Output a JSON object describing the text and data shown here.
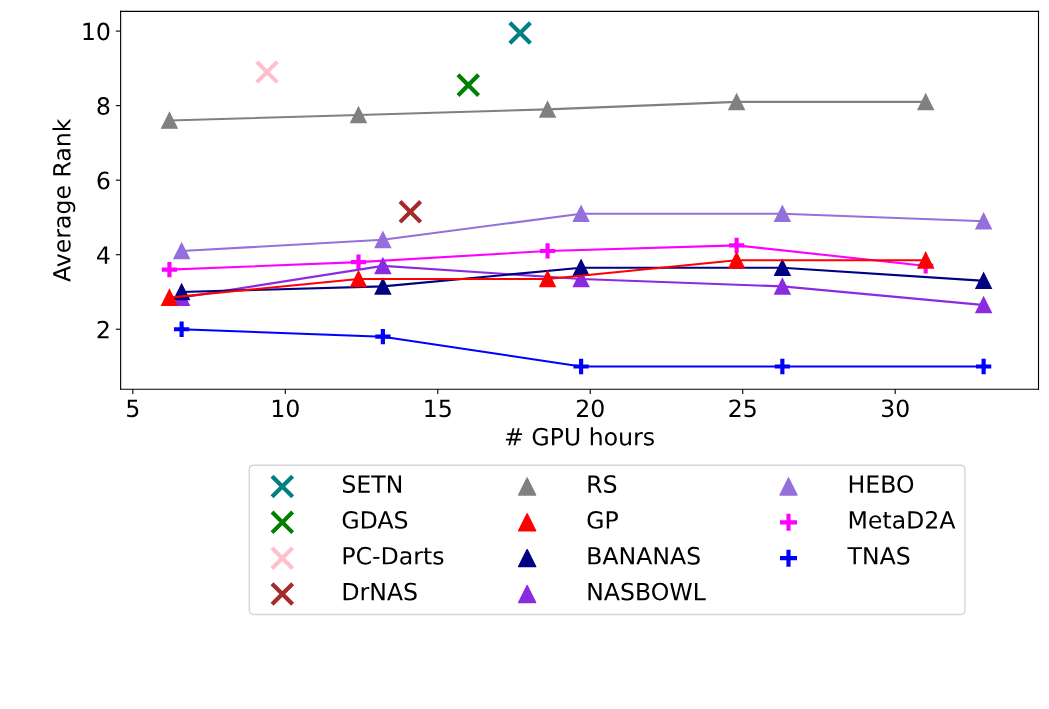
{
  "chart_data": {
    "type": "line",
    "xlabel": "# GPU hours",
    "ylabel": "Average Rank",
    "xlim": [
      4.6,
      34.7
    ],
    "ylim": [
      0.39,
      10.53
    ],
    "xticks": [
      5,
      10,
      15,
      20,
      25,
      30
    ],
    "yticks": [
      2,
      4,
      6,
      8,
      10
    ],
    "grid": false,
    "legend": "bottom",
    "series": [
      {
        "name": "SETN",
        "type": "scatter",
        "marker": "cross",
        "color": "#008080",
        "x": [
          17.7
        ],
        "values": [
          9.95
        ]
      },
      {
        "name": "GDAS",
        "type": "scatter",
        "marker": "cross",
        "color": "#008000",
        "x": [
          16.0
        ],
        "values": [
          8.55
        ]
      },
      {
        "name": "PC-Darts",
        "type": "scatter",
        "marker": "cross",
        "color": "#ffc0cb",
        "x": [
          9.4
        ],
        "values": [
          8.9
        ]
      },
      {
        "name": "DrNAS",
        "type": "scatter",
        "marker": "cross",
        "color": "#a52a2a",
        "x": [
          14.1
        ],
        "values": [
          5.15
        ]
      },
      {
        "name": "RS",
        "marker": "triangle",
        "color": "#808080",
        "x": [
          6.2,
          12.4,
          18.6,
          24.8,
          31.0
        ],
        "values": [
          7.6,
          7.75,
          7.9,
          8.1,
          8.1
        ]
      },
      {
        "name": "GP",
        "marker": "triangle",
        "color": "#ff0000",
        "x": [
          6.2,
          12.4,
          18.6,
          24.8,
          31.0
        ],
        "values": [
          2.85,
          3.35,
          3.35,
          3.85,
          3.85
        ]
      },
      {
        "name": "BANANAS",
        "marker": "triangle",
        "color": "#000080",
        "x": [
          6.6,
          13.2,
          19.7,
          26.3,
          32.9
        ],
        "values": [
          3.0,
          3.15,
          3.65,
          3.65,
          3.3
        ]
      },
      {
        "name": "NASBOWL",
        "marker": "triangle",
        "color": "#8a2be2",
        "x": [
          6.6,
          13.2,
          19.7,
          26.3,
          32.9
        ],
        "values": [
          2.85,
          3.7,
          3.35,
          3.15,
          2.65
        ]
      },
      {
        "name": "HEBO",
        "marker": "triangle",
        "color": "#9370db",
        "x": [
          6.6,
          13.2,
          19.7,
          26.3,
          32.9
        ],
        "values": [
          4.1,
          4.4,
          5.1,
          5.1,
          4.9
        ]
      },
      {
        "name": "MetaD2A",
        "marker": "plus",
        "color": "#ff00ff",
        "x": [
          6.2,
          12.4,
          18.6,
          24.8,
          31.0
        ],
        "values": [
          3.6,
          3.8,
          4.1,
          4.25,
          3.7
        ]
      },
      {
        "name": "TNAS",
        "marker": "plus",
        "color": "#0000ff",
        "x": [
          6.6,
          13.2,
          19.7,
          26.3,
          32.9
        ],
        "values": [
          2.0,
          1.8,
          1.0,
          1.0,
          1.0
        ]
      }
    ]
  }
}
